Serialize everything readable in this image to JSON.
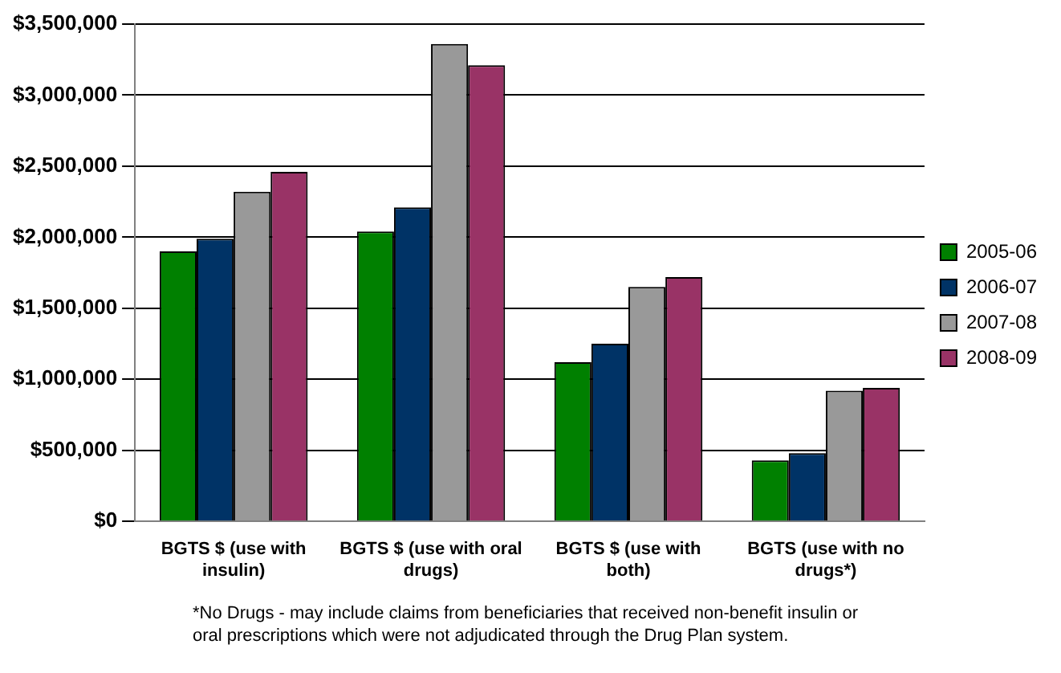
{
  "chart_data": {
    "type": "bar",
    "categories": [
      "BGTS $ (use with insulin)",
      "BGTS $ (use with oral drugs)",
      "BGTS $ (use with both)",
      "BGTS (use with no drugs*)"
    ],
    "series": [
      {
        "name": "2005-06",
        "color": "#008000",
        "values": [
          1900000,
          2040000,
          1120000,
          430000
        ]
      },
      {
        "name": "2006-07",
        "color": "#003366",
        "values": [
          1990000,
          2210000,
          1250000,
          480000
        ]
      },
      {
        "name": "2007-08",
        "color": "#999999",
        "values": [
          2320000,
          3360000,
          1650000,
          920000
        ]
      },
      {
        "name": "2008-09",
        "color": "#993366",
        "values": [
          2460000,
          3210000,
          1720000,
          940000
        ]
      }
    ],
    "ylim": [
      0,
      3500000
    ],
    "yticks": [
      {
        "value": 0,
        "label": "$0"
      },
      {
        "value": 500000,
        "label": "$500,000"
      },
      {
        "value": 1000000,
        "label": "$1,000,000"
      },
      {
        "value": 1500000,
        "label": "$1,500,000"
      },
      {
        "value": 2000000,
        "label": "$2,000,000"
      },
      {
        "value": 2500000,
        "label": "$2,500,000"
      },
      {
        "value": 3000000,
        "label": "$3,000,000"
      },
      {
        "value": 3500000,
        "label": "$3,500,000"
      }
    ],
    "grid": "y",
    "legend": "right",
    "annotations": [
      "*No Drugs - may include claims from beneficiaries that received non-benefit insulin or oral prescriptions which were not adjudicated through the Drug Plan system."
    ]
  }
}
